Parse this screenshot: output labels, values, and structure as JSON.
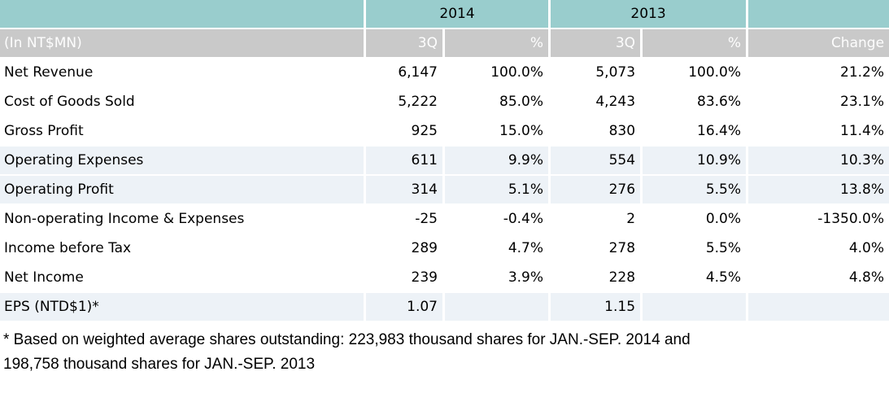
{
  "header": {
    "unit_label": "(In NT$MN)",
    "group_2014": "2014",
    "group_2013": "2013",
    "col_q_2014": "3Q",
    "col_pct_2014": "%",
    "col_q_2013": "3Q",
    "col_pct_2013": "%",
    "col_change": "Change"
  },
  "rows": [
    {
      "label": "Net Revenue",
      "q_2014": "6,147",
      "pct_2014": "100.0%",
      "q_2013": "5,073",
      "pct_2013": "100.0%",
      "change": "21.2%",
      "highlighted": false
    },
    {
      "label": "Cost of Goods Sold",
      "q_2014": "5,222",
      "pct_2014": "85.0%",
      "q_2013": "4,243",
      "pct_2013": "83.6%",
      "change": "23.1%",
      "highlighted": false
    },
    {
      "label": "Gross Profit",
      "q_2014": "925",
      "pct_2014": "15.0%",
      "q_2013": "830",
      "pct_2013": "16.4%",
      "change": "11.4%",
      "highlighted": false
    },
    {
      "label": "Operating Expenses",
      "q_2014": "611",
      "pct_2014": "9.9%",
      "q_2013": "554",
      "pct_2013": "10.9%",
      "change": "10.3%",
      "highlighted": true
    },
    {
      "label": "Operating Profit",
      "q_2014": "314",
      "pct_2014": "5.1%",
      "q_2013": "276",
      "pct_2013": "5.5%",
      "change": "13.8%",
      "highlighted": true
    },
    {
      "label": "Non-operating Income & Expenses",
      "q_2014": "-25",
      "pct_2014": "-0.4%",
      "q_2013": "2",
      "pct_2013": "0.0%",
      "change": "-1350.0%",
      "highlighted": false
    },
    {
      "label": "Income before Tax",
      "q_2014": "289",
      "pct_2014": "4.7%",
      "q_2013": "278",
      "pct_2013": "5.5%",
      "change": "4.0%",
      "highlighted": false
    },
    {
      "label": "Net Income",
      "q_2014": "239",
      "pct_2014": "3.9%",
      "q_2013": "228",
      "pct_2013": "4.5%",
      "change": "4.8%",
      "highlighted": false
    },
    {
      "label": "EPS (NTD$1)*",
      "q_2014": "1.07",
      "pct_2014": "",
      "q_2013": "1.15",
      "pct_2013": "",
      "change": "",
      "highlighted": true
    }
  ],
  "footnote": {
    "lines": [
      "* Based on weighted average shares outstanding: 223,983 thousand shares for JAN.-SEP. 2014 and",
      "198,758 thousand shares for JAN.-SEP. 2013"
    ]
  },
  "colors": {
    "year_header_teal": "#99cdcd",
    "column_header_gray": "#c9c9c9",
    "column_header_text": "#fdfdfd",
    "highlight_row_blue": "#edf2f7",
    "default_row_white": "#ffffff",
    "text_black": "#000000"
  }
}
